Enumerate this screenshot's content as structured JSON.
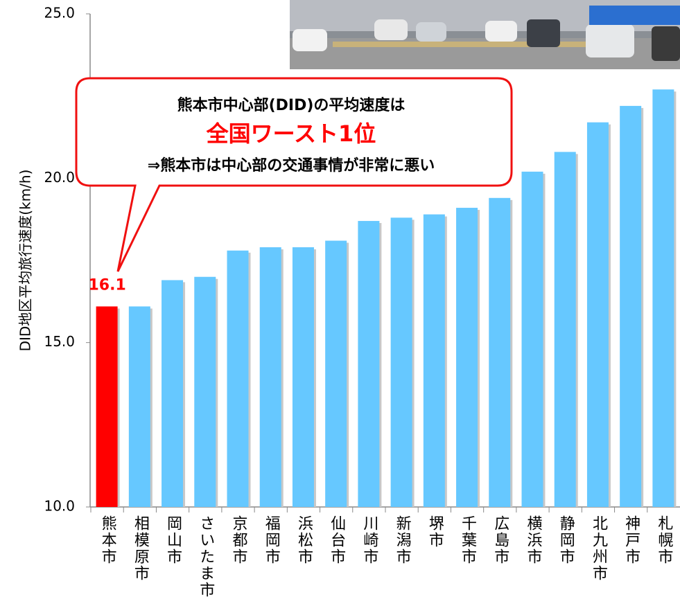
{
  "chart_data": {
    "type": "bar",
    "y_label": "DID地区平均旅行速度(km/h)",
    "categories": [
      "熊本市",
      "相模原市",
      "岡山市",
      "さいたま市",
      "京都市",
      "福岡市",
      "浜松市",
      "仙台市",
      "川崎市",
      "新潟市",
      "堺市",
      "千葉市",
      "広島市",
      "横浜市",
      "静岡市",
      "北九州市",
      "神戸市",
      "札幌市"
    ],
    "values": [
      16.1,
      16.1,
      16.9,
      17.0,
      17.8,
      17.9,
      17.9,
      18.1,
      18.7,
      18.8,
      18.9,
      19.1,
      19.4,
      20.2,
      20.8,
      21.7,
      22.2,
      22.7
    ],
    "colors": [
      "#ff0000",
      "#66c8ff",
      "#66c8ff",
      "#66c8ff",
      "#66c8ff",
      "#66c8ff",
      "#66c8ff",
      "#66c8ff",
      "#66c8ff",
      "#66c8ff",
      "#66c8ff",
      "#66c8ff",
      "#66c8ff",
      "#66c8ff",
      "#66c8ff",
      "#66c8ff",
      "#66c8ff",
      "#66c8ff"
    ],
    "ylim": [
      10,
      25
    ],
    "yticks": [
      {
        "value": 10,
        "label": "10.0"
      },
      {
        "value": 15,
        "label": "15.0"
      },
      {
        "value": 20,
        "label": "20.0"
      },
      {
        "value": 25,
        "label": "25.0"
      }
    ],
    "callout": {
      "line1": "熊本市中心部(DID)の平均速度は",
      "line2": "全国ワースト1位",
      "line3": "⇒熊本市は中心部の交通事情が非常に悪い"
    }
  }
}
